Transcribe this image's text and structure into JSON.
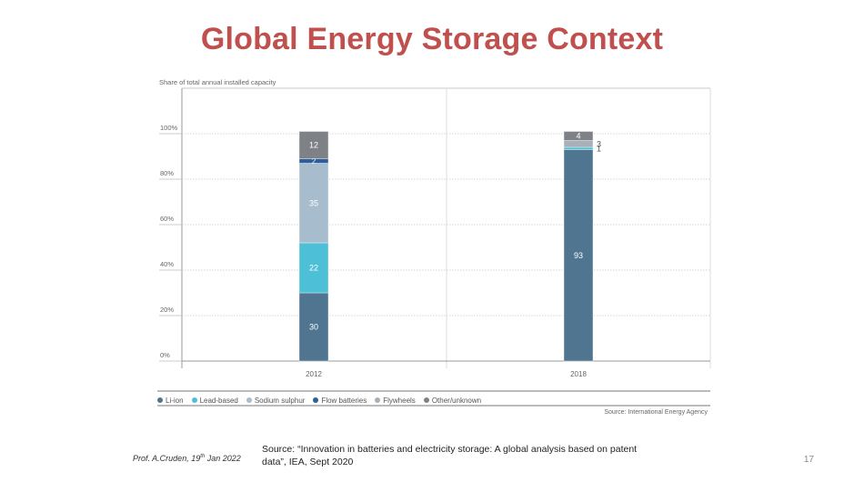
{
  "slide": {
    "title": "Global Energy Storage Context",
    "author_main": "Prof. A.Cruden, 19",
    "author_sup": "th",
    "author_tail": " Jan 2022",
    "source_line1": "Source: “Innovation in batteries and electricity storage: A global analysis based on patent",
    "source_line2": "data”, IEA, Sept 2020",
    "page_number": "17"
  },
  "chart_data": {
    "type": "bar",
    "stacked": true,
    "title": "",
    "ylabel": "Share of total annual installed capacity",
    "xlabel": "",
    "categories": [
      "2012",
      "2018"
    ],
    "ylim": [
      0,
      100
    ],
    "yticks": [
      "0%",
      "20%",
      "40%",
      "60%",
      "80%",
      "100%"
    ],
    "series": [
      {
        "name": "Li-ion",
        "color": "#4f7590",
        "values": [
          30,
          93
        ]
      },
      {
        "name": "Lead-based",
        "color": "#4dbfd6",
        "values": [
          22,
          1
        ]
      },
      {
        "name": "Sodium sulphur",
        "color": "#a7bccd",
        "values": [
          35,
          0
        ]
      },
      {
        "name": "Flow batteries",
        "color": "#2e5e9b",
        "values": [
          2,
          0
        ]
      },
      {
        "name": "Flywheels",
        "color": "#a8b0b8",
        "values": [
          0,
          3
        ]
      },
      {
        "name": "Other/unknown",
        "color": "#7e8287",
        "values": [
          12,
          4
        ]
      }
    ],
    "data_labels": [
      [
        "30",
        "22",
        "35",
        "2",
        "",
        "12"
      ],
      [
        "93",
        "1",
        "",
        "",
        "3",
        "4"
      ]
    ],
    "legend_position": "bottom",
    "grid": true,
    "source": "Source: International Energy Agency"
  }
}
